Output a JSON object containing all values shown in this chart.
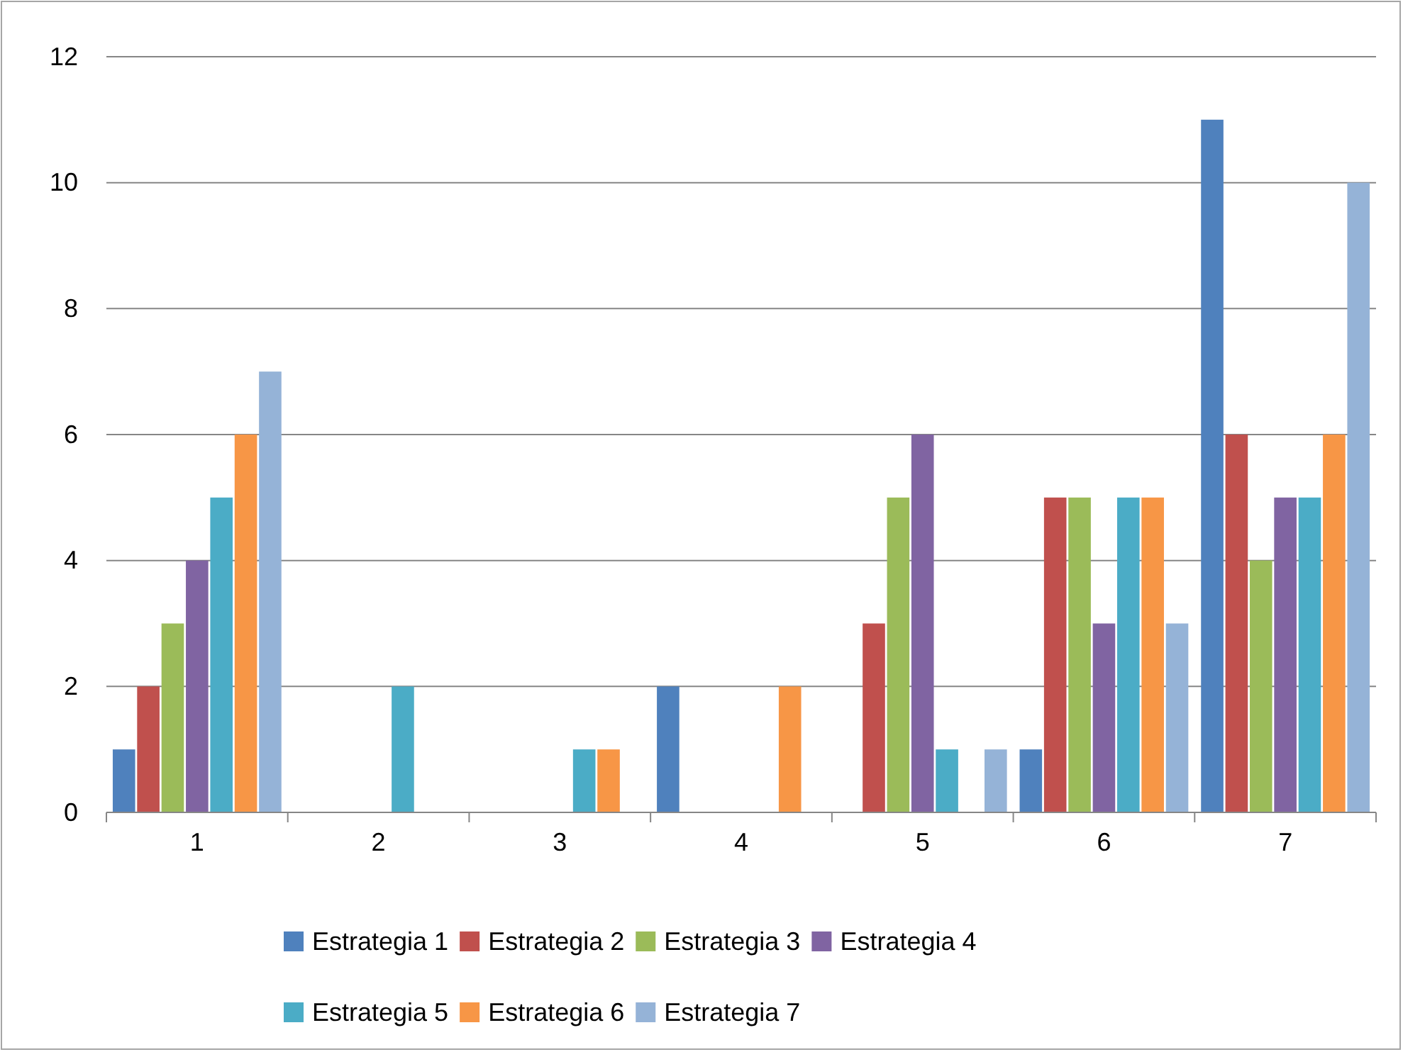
{
  "chart_data": {
    "type": "bar",
    "categories": [
      "1",
      "2",
      "3",
      "4",
      "5",
      "6",
      "7"
    ],
    "series": [
      {
        "name": "Estrategia 1",
        "color": "#4f81bd",
        "values": [
          1,
          0,
          0,
          2,
          0,
          1,
          11
        ]
      },
      {
        "name": "Estrategia 2",
        "color": "#c0504d",
        "values": [
          2,
          0,
          0,
          0,
          3,
          5,
          6
        ]
      },
      {
        "name": "Estrategia 3",
        "color": "#9bbb59",
        "values": [
          3,
          0,
          0,
          0,
          5,
          5,
          4
        ]
      },
      {
        "name": "Estrategia 4",
        "color": "#8064a2",
        "values": [
          4,
          0,
          0,
          0,
          6,
          3,
          5
        ]
      },
      {
        "name": "Estrategia 5",
        "color": "#4bacc6",
        "values": [
          5,
          2,
          1,
          0,
          1,
          5,
          5
        ]
      },
      {
        "name": "Estrategia 6",
        "color": "#f79646",
        "values": [
          6,
          0,
          1,
          2,
          0,
          5,
          6
        ]
      },
      {
        "name": "Estrategia 7",
        "color": "#95b3d7",
        "values": [
          7,
          0,
          0,
          0,
          1,
          3,
          10
        ]
      }
    ],
    "ylim": [
      0,
      12
    ],
    "yticks": [
      0,
      2,
      4,
      6,
      8,
      10,
      12
    ],
    "grid": "y",
    "legend": "bottom"
  }
}
